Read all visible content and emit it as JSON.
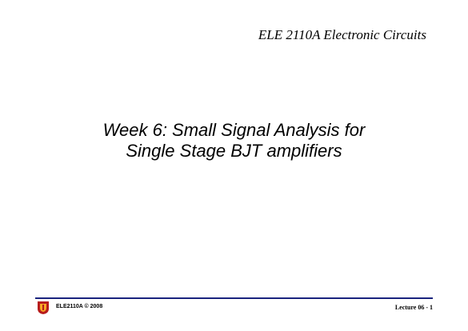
{
  "header": {
    "course": "ELE 2110A Electronic Circuits"
  },
  "title": {
    "line1": "Week 6: Small Signal Analysis for",
    "line2": "Single Stage BJT amplifiers"
  },
  "footer": {
    "copyright": "ELE2110A © 2008",
    "page": "Lecture 06 - 1"
  },
  "colors": {
    "rule": "#1a237e",
    "logo_red": "#b71c1c",
    "logo_gold": "#f9a825"
  }
}
